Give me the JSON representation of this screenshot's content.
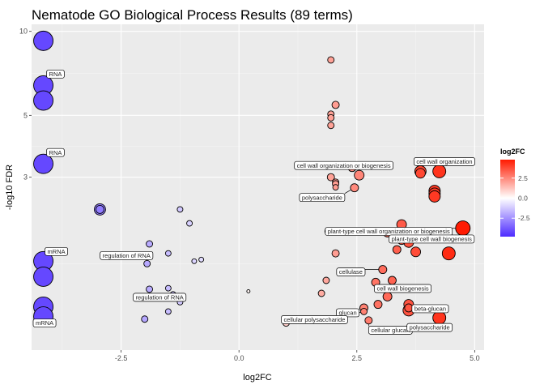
{
  "chart_data": {
    "type": "scatter",
    "title": "Nematode GO Biological Process Results (89 terms)",
    "xlabel": "log2FC",
    "ylabel": "-log10 FDR",
    "x_ticks": [
      "-2.5",
      "0.0",
      "2.5",
      "5.0"
    ],
    "y_ticks": [
      "3",
      "5",
      "10"
    ],
    "xlim": [
      -4.4,
      5.2
    ],
    "ylim": [
      0.72,
      10.6
    ],
    "y_scale": "log",
    "grid": true,
    "legend": {
      "title": "log2FC",
      "position": "right",
      "ticks": [
        "2.5",
        "0.0",
        "-2.5"
      ],
      "low_color": "#4d2bff",
      "mid_color": "#ffffff",
      "high_color": "#ff1a00"
    },
    "points": [
      {
        "x": -4.15,
        "y": 9.25,
        "size": 12
      },
      {
        "x": -4.15,
        "y": 6.4,
        "size": 12
      },
      {
        "x": -4.15,
        "y": 5.65,
        "size": 12
      },
      {
        "x": -4.15,
        "y": 3.35,
        "size": 12
      },
      {
        "x": -4.15,
        "y": 1.5,
        "size": 12
      },
      {
        "x": -4.15,
        "y": 1.32,
        "size": 12
      },
      {
        "x": -4.15,
        "y": 1.03,
        "size": 12
      },
      {
        "x": -4.15,
        "y": 0.95,
        "size": 12
      },
      {
        "x": -2.95,
        "y": 2.3,
        "size": 7
      },
      {
        "x": -2.95,
        "y": 2.3,
        "size": 5
      },
      {
        "x": -1.9,
        "y": 1.73,
        "size": 4
      },
      {
        "x": -1.95,
        "y": 1.47,
        "size": 4
      },
      {
        "x": -1.9,
        "y": 1.19,
        "size": 4
      },
      {
        "x": -1.5,
        "y": 1.6,
        "size": 3.5
      },
      {
        "x": -1.25,
        "y": 2.3,
        "size": 3.5
      },
      {
        "x": -1.05,
        "y": 2.05,
        "size": 3.5
      },
      {
        "x": -0.95,
        "y": 1.5,
        "size": 3
      },
      {
        "x": -0.8,
        "y": 1.52,
        "size": 3
      },
      {
        "x": -1.5,
        "y": 1.2,
        "size": 3.5
      },
      {
        "x": -1.4,
        "y": 1.14,
        "size": 3.5
      },
      {
        "x": -1.25,
        "y": 1.07,
        "size": 3.5
      },
      {
        "x": -1.5,
        "y": 0.99,
        "size": 3.5
      },
      {
        "x": -2.0,
        "y": 0.93,
        "size": 4
      },
      {
        "x": 0.2,
        "y": 1.17,
        "size": 2
      },
      {
        "x": 1.95,
        "y": 7.9,
        "size": 4
      },
      {
        "x": 2.05,
        "y": 5.45,
        "size": 4.5
      },
      {
        "x": 1.95,
        "y": 5.05,
        "size": 4
      },
      {
        "x": 1.95,
        "y": 4.9,
        "size": 4
      },
      {
        "x": 1.95,
        "y": 4.6,
        "size": 4
      },
      {
        "x": 1.95,
        "y": 3.0,
        "size": 4.5
      },
      {
        "x": 2.05,
        "y": 2.88,
        "size": 4
      },
      {
        "x": 2.05,
        "y": 2.84,
        "size": 4
      },
      {
        "x": 2.05,
        "y": 2.76,
        "size": 3.5
      },
      {
        "x": 2.4,
        "y": 3.25,
        "size": 5
      },
      {
        "x": 2.55,
        "y": 3.05,
        "size": 6
      },
      {
        "x": 2.45,
        "y": 2.75,
        "size": 5
      },
      {
        "x": 3.85,
        "y": 3.15,
        "size": 7
      },
      {
        "x": 3.85,
        "y": 3.1,
        "size": 6
      },
      {
        "x": 4.25,
        "y": 3.15,
        "size": 8
      },
      {
        "x": 4.15,
        "y": 2.68,
        "size": 7
      },
      {
        "x": 4.15,
        "y": 2.62,
        "size": 7
      },
      {
        "x": 4.15,
        "y": 2.56,
        "size": 7
      },
      {
        "x": 1.9,
        "y": 1.92,
        "size": 4.5
      },
      {
        "x": 2.05,
        "y": 1.6,
        "size": 4.5
      },
      {
        "x": 1.85,
        "y": 1.28,
        "size": 4
      },
      {
        "x": 1.75,
        "y": 1.15,
        "size": 4
      },
      {
        "x": 3.45,
        "y": 2.03,
        "size": 6
      },
      {
        "x": 3.15,
        "y": 1.9,
        "size": 5.5
      },
      {
        "x": 4.75,
        "y": 1.97,
        "size": 9
      },
      {
        "x": 3.45,
        "y": 1.78,
        "size": 5
      },
      {
        "x": 3.6,
        "y": 1.75,
        "size": 6
      },
      {
        "x": 3.35,
        "y": 1.65,
        "size": 5
      },
      {
        "x": 3.75,
        "y": 1.62,
        "size": 6
      },
      {
        "x": 4.45,
        "y": 1.6,
        "size": 8
      },
      {
        "x": 3.05,
        "y": 1.4,
        "size": 5
      },
      {
        "x": 3.25,
        "y": 1.28,
        "size": 5
      },
      {
        "x": 2.9,
        "y": 1.26,
        "size": 5
      },
      {
        "x": 3.15,
        "y": 1.12,
        "size": 5.5
      },
      {
        "x": 2.95,
        "y": 1.05,
        "size": 5
      },
      {
        "x": 3.6,
        "y": 1.05,
        "size": 6
      },
      {
        "x": 3.6,
        "y": 1.0,
        "size": 7
      },
      {
        "x": 3.6,
        "y": 1.02,
        "size": 5
      },
      {
        "x": 2.65,
        "y": 1.02,
        "size": 5
      },
      {
        "x": 2.65,
        "y": 0.99,
        "size": 4
      },
      {
        "x": 4.25,
        "y": 0.94,
        "size": 8
      },
      {
        "x": 2.75,
        "y": 0.92,
        "size": 4.5
      },
      {
        "x": 1.0,
        "y": 0.9,
        "size": 4
      }
    ],
    "annotations": [
      {
        "text": "RNA",
        "x": -4.15,
        "y": 6.4
      },
      {
        "text": "RNA",
        "x": -4.15,
        "y": 3.35
      },
      {
        "text": "mRNA",
        "x": -4.15,
        "y": 1.5
      },
      {
        "text": "mRNA",
        "x": -4.15,
        "y": 0.95
      },
      {
        "text": "regulation of RNA",
        "x": -1.95,
        "y": 1.47
      },
      {
        "text": "regulation of RNA",
        "x": -1.9,
        "y": 1.19
      },
      {
        "text": "cell wall organization or biogenesis",
        "x": 2.55,
        "y": 3.05
      },
      {
        "text": "cell wall organization",
        "x": 3.85,
        "y": 3.15
      },
      {
        "text": "polysaccharide",
        "x": 2.45,
        "y": 2.75
      },
      {
        "text": "plant-type cell wall organization or biogenesis",
        "x": 4.75,
        "y": 1.97
      },
      {
        "text": "plant-type cell wall biogenesis",
        "x": 3.15,
        "y": 1.9
      },
      {
        "text": "cellulase",
        "x": 3.05,
        "y": 1.4
      },
      {
        "text": "cell wall biogenesis",
        "x": 3.25,
        "y": 1.28
      },
      {
        "text": "glucan",
        "x": 2.65,
        "y": 1.02
      },
      {
        "text": "beta-glucan",
        "x": 3.6,
        "y": 1.02
      },
      {
        "text": "cellular polysaccharide",
        "x": 2.65,
        "y": 0.99
      },
      {
        "text": "cellular glucan",
        "x": 2.75,
        "y": 0.92
      },
      {
        "text": "polysaccharide",
        "x": 4.25,
        "y": 0.94
      }
    ]
  }
}
